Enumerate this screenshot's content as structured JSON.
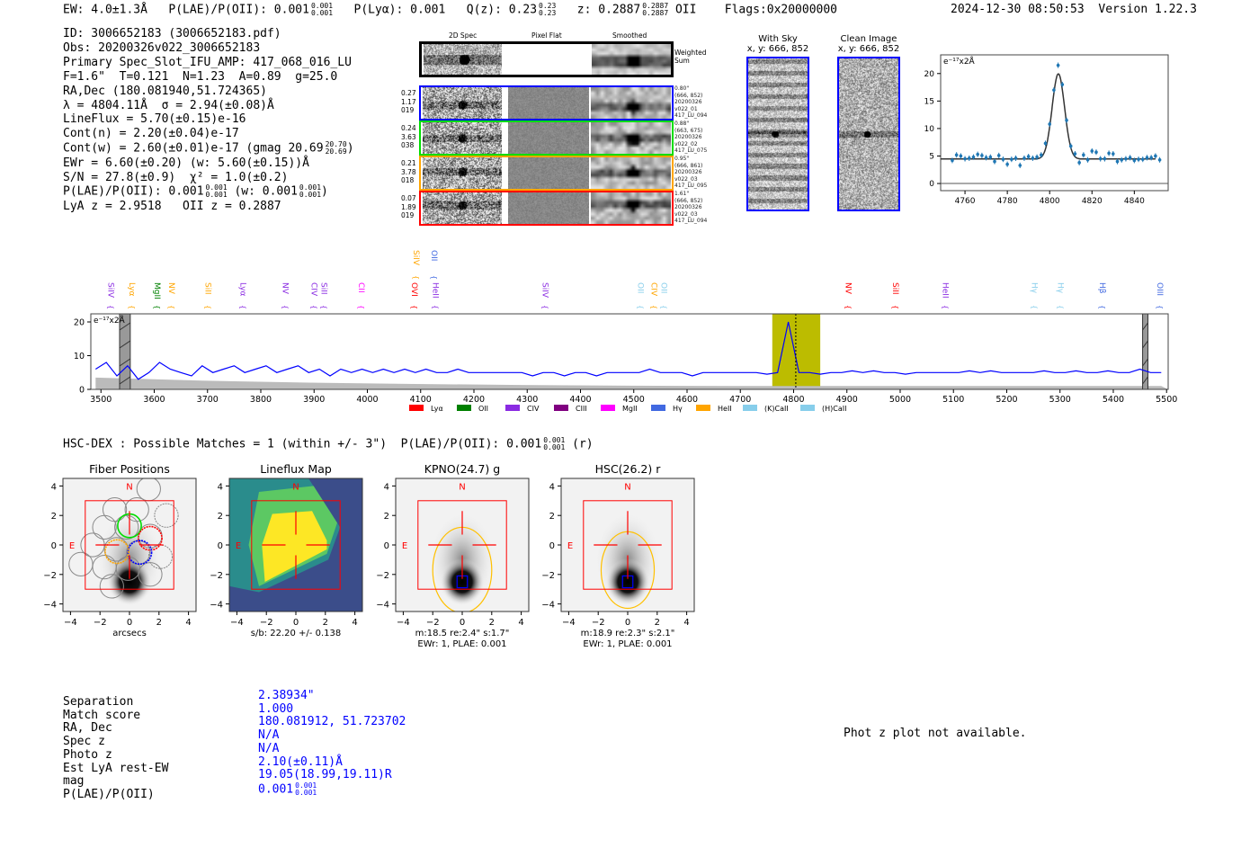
{
  "header": {
    "ew": "EW: 4.0±1.3Å",
    "plae": "P(LAE)/P(OII): 0.001",
    "plae_hi": "0.001",
    "plae_lo": "0.001",
    "plya": "P(Lyα): 0.001",
    "qz": "Q(z): 0.23",
    "qz_hi": "0.23",
    "qz_lo": "0.23",
    "z": "z: 0.2887",
    "z_hi": "0.2887",
    "z_lo": "0.2887",
    "z_line": "OII",
    "flags": "Flags:0x20000000",
    "timestamp": "2024-12-30 08:50:53",
    "version": "Version 1.22.3"
  },
  "info": {
    "id": "ID: 3006652183 (3006652183.pdf)",
    "obs": "Obs: 20200326v022_3006652183",
    "primary": "Primary Spec_Slot_IFU_AMP: 417_068_016_LU",
    "params": "F=1.6\"  T=0.121  N=1.23  A=0.89  g=25.0",
    "radec": "RA,Dec (180.081940,51.724365)",
    "lambda": "λ = 4804.11Å  σ = 2.94(±0.08)Å",
    "lineflux": "LineFlux = 5.70(±0.15)e-16",
    "cont_n": "Cont(n) = 2.20(±0.04)e-17",
    "cont_w": "Cont(w) = 2.60(±0.01)e-17 (gmag 20.69",
    "gmag_hi": "20.70",
    "gmag_lo": "20.69",
    "cont_w_end": ")",
    "ewr": "EWr = 6.60(±0.20) (w: 5.60(±0.15))Å",
    "sn": "S/N = 27.8(±0.9)  χ² = 1.0(±0.2)",
    "plae": "P(LAE)/P(OII): 0.001",
    "plae_hi": "0.001",
    "plae_lo": "0.001",
    "plae_w": "(w: 0.001",
    "plae_w_hi": "0.001",
    "plae_w_lo": "0.001",
    "plae_w_end": ")",
    "lyaz": "LyA z = 2.9518   OII z = 0.2887"
  },
  "spec2d": {
    "col_headers": [
      "2D Spec",
      "Pixel Flat",
      "Smoothed"
    ],
    "weighted_sum_label": "Weighted Sum",
    "rows": [
      {
        "color": "#0000ff",
        "left": [
          "0.27",
          "1.17",
          "019"
        ],
        "right": [
          "0.80\"",
          "(666, 852)",
          "20200326",
          "v022_01",
          "417_LU_094"
        ]
      },
      {
        "color": "#00dd00",
        "left": [
          "0.24",
          "3.63",
          "038"
        ],
        "right": [
          "0.88\"",
          "(663, 675)",
          "20200326",
          "v022_02",
          "417_LU_075"
        ]
      },
      {
        "color": "#ffa500",
        "left": [
          "0.21",
          "3.78",
          "018"
        ],
        "right": [
          "0.95\"",
          "(666, 861)",
          "20200326",
          "v022_03",
          "417_LU_095"
        ]
      },
      {
        "color": "#ff0000",
        "left": [
          "0.07",
          "1.89",
          "019"
        ],
        "right": [
          "1.61\"",
          "(666, 852)",
          "20200326",
          "v022_03",
          "417_LU_094"
        ]
      }
    ]
  },
  "ccd": {
    "with_sky_title": "With Sky",
    "with_sky_xy": "x, y: 666, 852",
    "clean_title": "Clean Image",
    "clean_xy": "x, y: 666, 852"
  },
  "chart_data": [
    {
      "type": "scatter",
      "title": "",
      "ylabel_note": "e⁻¹⁷x2Å",
      "xlim": [
        4748.5,
        4856
      ],
      "ylim": [
        -1.3,
        23.4
      ],
      "xticks": [
        "4760",
        "4780",
        "4800",
        "4820",
        "4840"
      ],
      "yticks": [
        "0",
        "5",
        "10",
        "15",
        "20"
      ],
      "x_start": 4754,
      "x_step": 2,
      "values": [
        4.2,
        5.2,
        5.0,
        4.5,
        4.6,
        4.8,
        5.3,
        5.1,
        4.7,
        4.8,
        4.0,
        5.1,
        4.4,
        3.5,
        4.4,
        4.6,
        3.3,
        4.6,
        4.9,
        4.6,
        4.8,
        5.2,
        7.3,
        10.8,
        17.0,
        21.5,
        18.0,
        11.5,
        6.8,
        5.4,
        3.8,
        5.2,
        4.3,
        5.9,
        5.7,
        4.5,
        4.5,
        5.5,
        5.4,
        4.0,
        4.3,
        4.5,
        4.7,
        4.2,
        4.4,
        4.4,
        4.7,
        4.7,
        5.0,
        4.3
      ],
      "error": 0.5,
      "fit": {
        "continuum": 4.45,
        "amplitude": 15.5,
        "center": 4804.11,
        "sigma": 2.94
      },
      "colors": {
        "points": "#1f77b4",
        "fit": "#333333"
      }
    },
    {
      "type": "line",
      "note": "e⁻¹⁷x2Å",
      "xlim": [
        3481,
        5503
      ],
      "ylim": [
        0,
        22.4
      ],
      "xticks": [
        "3500",
        "3600",
        "3700",
        "3800",
        "3900",
        "4000",
        "4100",
        "4200",
        "4300",
        "4400",
        "4500",
        "4600",
        "4700",
        "4800",
        "4900",
        "5000",
        "5100",
        "5200",
        "5300",
        "5400",
        "5500"
      ],
      "yticks": [
        "0",
        "10",
        "20"
      ],
      "x_start": 3490,
      "x_step": 20,
      "values": [
        6,
        8,
        4,
        7,
        3,
        5,
        8,
        6,
        5,
        4,
        7,
        5,
        6,
        7,
        5,
        6,
        7,
        5,
        6,
        7,
        5,
        6,
        4,
        6,
        5,
        6,
        5,
        6,
        5,
        6,
        5,
        6,
        5,
        5,
        6,
        5,
        5,
        5,
        5,
        5,
        5,
        4,
        5,
        5,
        4,
        5,
        5,
        4,
        5,
        5,
        5,
        5,
        6,
        5,
        5,
        5,
        4,
        5,
        5,
        5,
        5,
        5,
        5,
        4.5,
        5,
        20,
        5,
        5,
        4.5,
        5,
        5,
        5.5,
        5,
        5.5,
        5,
        5,
        4.5,
        5,
        5,
        5,
        5,
        5,
        5.5,
        5,
        5.5,
        5,
        5,
        5,
        5,
        5.5,
        5,
        5,
        5.5,
        5,
        5,
        5.5,
        5,
        5,
        6,
        5,
        5
      ],
      "error_x_start": 3490,
      "error_x_step": 200,
      "error_values": [
        3.5,
        2.6,
        2.0,
        1.6,
        1.3,
        1.1,
        1.0,
        1.0,
        1.0,
        1.0,
        1.0
      ],
      "highlight_range": [
        4760,
        4850
      ],
      "line_center": 4804.11,
      "masked_ranges": [
        [
          3535,
          3555
        ],
        [
          5455,
          5465
        ]
      ],
      "colors": {
        "spectrum": "#0000ff",
        "error": "#bbbbbb",
        "highlight": "#bcbc00"
      },
      "line_markers": [
        {
          "name": "SiIV",
          "wave": 3519,
          "color": "#8a2be2",
          "row": 0
        },
        {
          "name": "Lyα",
          "wave": 3559,
          "color": "#ffa500",
          "row": 0
        },
        {
          "name": "MgII",
          "wave": 3606,
          "color": "#008000",
          "row": 0
        },
        {
          "name": "NV",
          "wave": 3633,
          "color": "#ffa500",
          "row": 0
        },
        {
          "name": "SiII",
          "wave": 3701,
          "color": "#ffa500",
          "row": 0
        },
        {
          "name": "Lyα",
          "wave": 3767,
          "color": "#8a2be2",
          "row": 0
        },
        {
          "name": "NV",
          "wave": 3846,
          "color": "#8a2be2",
          "row": 0
        },
        {
          "name": "CIV",
          "wave": 3900,
          "color": "#8a2be2",
          "row": 0
        },
        {
          "name": "SiII",
          "wave": 3917,
          "color": "#8a2be2",
          "row": 0
        },
        {
          "name": "CII",
          "wave": 3989,
          "color": "#ff00ff",
          "row": 0
        },
        {
          "name": "OVI",
          "wave": 4089,
          "color": "#ff0000",
          "row": 0
        },
        {
          "name": "HeII",
          "wave": 4128,
          "color": "#8a2be2",
          "row": 0
        },
        {
          "name": "SiIV",
          "wave": 4092,
          "color": "#ffa500",
          "row": 1
        },
        {
          "name": "OII",
          "wave": 4126,
          "color": "#4169e1",
          "row": 1
        },
        {
          "name": "SiIV",
          "wave": 4334,
          "color": "#8a2be2",
          "row": 0
        },
        {
          "name": "OII",
          "wave": 4513,
          "color": "#87ceeb",
          "row": 0
        },
        {
          "name": "CIV",
          "wave": 4538,
          "color": "#ffa500",
          "row": 0
        },
        {
          "name": "OII",
          "wave": 4551,
          "color": "#87ceeb",
          "row": 0
        },
        {
          "name": "NV",
          "wave": 4903,
          "color": "#ff0000",
          "row": 0
        },
        {
          "name": "SiII",
          "wave": 4992,
          "color": "#ff0000",
          "row": 0
        },
        {
          "name": "HeII",
          "wave": 5085,
          "color": "#8a2be2",
          "row": 0
        },
        {
          "name": "Hγ",
          "wave": 5252,
          "color": "#87ceeb",
          "row": 0
        },
        {
          "name": "Hγ",
          "wave": 5301,
          "color": "#87ceeb",
          "row": 0
        },
        {
          "name": "Hβ",
          "wave": 5380,
          "color": "#4169e1",
          "row": 0
        },
        {
          "name": "OIII",
          "wave": 5488,
          "color": "#4169e1",
          "row": 0
        }
      ],
      "legend": [
        {
          "label": "Lyα",
          "color": "#ff0000"
        },
        {
          "label": "OII",
          "color": "#008000"
        },
        {
          "label": "CIV",
          "color": "#8a2be2"
        },
        {
          "label": "CIII",
          "color": "#800080"
        },
        {
          "label": "MgII",
          "color": "#ff00ff"
        },
        {
          "label": "Hγ",
          "color": "#4169e1"
        },
        {
          "label": "HeII",
          "color": "#ffa500"
        },
        {
          "label": "(K)CaII",
          "color": "#87ceeb"
        },
        {
          "label": "(H)CaII",
          "color": "#87ceeb"
        }
      ],
      "legend_placement": "bottom-center"
    }
  ],
  "match": {
    "title": "HSC-DEX : Possible Matches = 1 (within +/- 3\")  P(LAE)/P(OII): 0.001",
    "title_hi": "0.001",
    "title_lo": "0.001",
    "title_end": "(r)"
  },
  "cutouts": {
    "ticks": [
      "-4",
      "-2",
      "0",
      "2",
      "4"
    ],
    "north": "N",
    "east": "E",
    "panels": [
      {
        "title": "Fiber Positions",
        "caption": [
          "arcsecs"
        ]
      },
      {
        "title": "Lineflux Map",
        "caption": [
          "s/b: 22.20 +/- 0.138"
        ]
      },
      {
        "title": "KPNO(24.7) g",
        "caption": [
          "m:18.5  re:2.4\"  s:1.7\"",
          "EWr: 1, PLAE: 0.001"
        ]
      },
      {
        "title": "HSC(26.2) r",
        "caption": [
          "m:18.9  re:2.3\"  s:2.1\"",
          "EWr: 1, PLAE: 0.001"
        ]
      }
    ]
  },
  "table": {
    "labels": [
      "Separation",
      "Match score",
      "RA, Dec",
      "Spec z",
      "Photo z",
      "Est LyA rest-EW",
      "mag",
      "P(LAE)/P(OII)"
    ],
    "values": [
      "2.38934\"",
      "1.000",
      "180.081912, 51.723702",
      "N/A",
      "N/A",
      "2.10(±0.11)Å",
      "19.05(18.99,19.11)R",
      "0.001"
    ],
    "plae_hi": "0.001",
    "plae_lo": "0.001"
  },
  "photz_message": "Phot z plot not available."
}
